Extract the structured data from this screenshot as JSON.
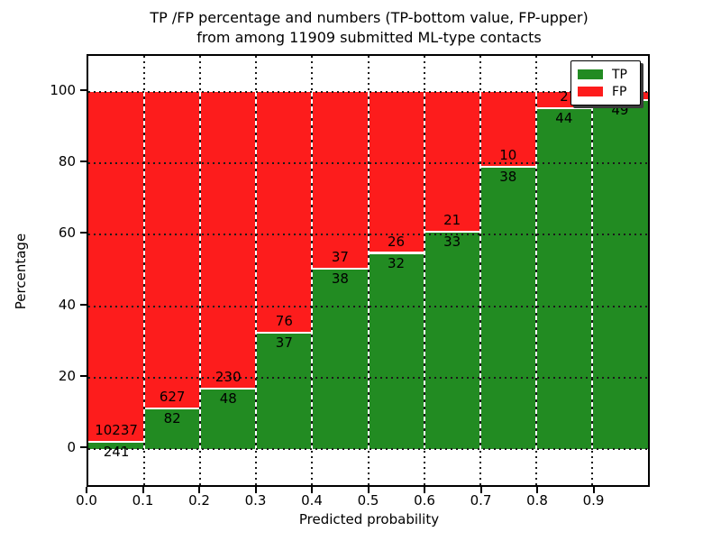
{
  "title": {
    "line1": "TP /FP percentage and numbers (TP-bottom value, FP-upper)",
    "line2": "from among 11909 submitted ML-type contacts"
  },
  "colors": {
    "tp": "#228b22",
    "fp": "#fd1c1c",
    "grid": "#1a1a1a",
    "frame": "#000000"
  },
  "legend": {
    "items": [
      {
        "label": "TP",
        "color_key": "tp"
      },
      {
        "label": "FP",
        "color_key": "fp"
      }
    ]
  },
  "axes": {
    "xlabel": "Predicted probability",
    "ylabel": "Percentage",
    "xlim": [
      0.0,
      1.0
    ],
    "ylim": [
      -11,
      110
    ],
    "xtick_labels": [
      "0.0",
      "0.1",
      "0.2",
      "0.3",
      "0.4",
      "0.5",
      "0.6",
      "0.7",
      "0.8",
      "0.9"
    ],
    "xtick_values": [
      0.0,
      0.1,
      0.2,
      0.3,
      0.4,
      0.5,
      0.6,
      0.7,
      0.8,
      0.9
    ],
    "ytick_labels": [
      "0",
      "20",
      "40",
      "60",
      "80",
      "100"
    ],
    "ytick_values": [
      0,
      20,
      40,
      60,
      80,
      100
    ],
    "grid": true
  },
  "chart_data": {
    "type": "bar",
    "stacked": true,
    "title": "TP /FP percentage and numbers (TP-bottom value, FP-upper) from among 11909 submitted ML-type contacts",
    "xlabel": "Predicted probability",
    "ylabel": "Percentage",
    "total_contacts": 11909,
    "bin_width": 0.1,
    "series_order": [
      "TP bottom",
      "FP top"
    ],
    "bins": [
      {
        "x0": 0.0,
        "x1": 0.1,
        "tp": 241,
        "fp": 10237,
        "tp_pct": 2.3,
        "tp_label": "241",
        "fp_label": "10237"
      },
      {
        "x0": 0.1,
        "x1": 0.2,
        "tp": 82,
        "fp": 627,
        "tp_pct": 11.57,
        "tp_label": "82",
        "fp_label": "627"
      },
      {
        "x0": 0.2,
        "x1": 0.3,
        "tp": 48,
        "fp": 230,
        "tp_pct": 17.27,
        "tp_label": "48",
        "fp_label": "230"
      },
      {
        "x0": 0.3,
        "x1": 0.4,
        "tp": 37,
        "fp": 76,
        "tp_pct": 32.74,
        "tp_label": "37",
        "fp_label": "76"
      },
      {
        "x0": 0.4,
        "x1": 0.5,
        "tp": 38,
        "fp": 37,
        "tp_pct": 50.67,
        "tp_label": "38",
        "fp_label": "37"
      },
      {
        "x0": 0.5,
        "x1": 0.6,
        "tp": 32,
        "fp": 26,
        "tp_pct": 55.17,
        "tp_label": "32",
        "fp_label": "26"
      },
      {
        "x0": 0.6,
        "x1": 0.7,
        "tp": 33,
        "fp": 21,
        "tp_pct": 61.11,
        "tp_label": "33",
        "fp_label": "21"
      },
      {
        "x0": 0.7,
        "x1": 0.8,
        "tp": 38,
        "fp": 10,
        "tp_pct": 79.17,
        "tp_label": "38",
        "fp_label": "10"
      },
      {
        "x0": 0.8,
        "x1": 0.9,
        "tp": 44,
        "fp": 2,
        "tp_pct": 95.65,
        "tp_label": "44",
        "fp_label": "2"
      },
      {
        "x0": 0.9,
        "x1": 1.0,
        "tp": 49,
        "fp": 1,
        "tp_pct": 98.0,
        "tp_label": "49",
        "fp_label": ""
      }
    ]
  }
}
